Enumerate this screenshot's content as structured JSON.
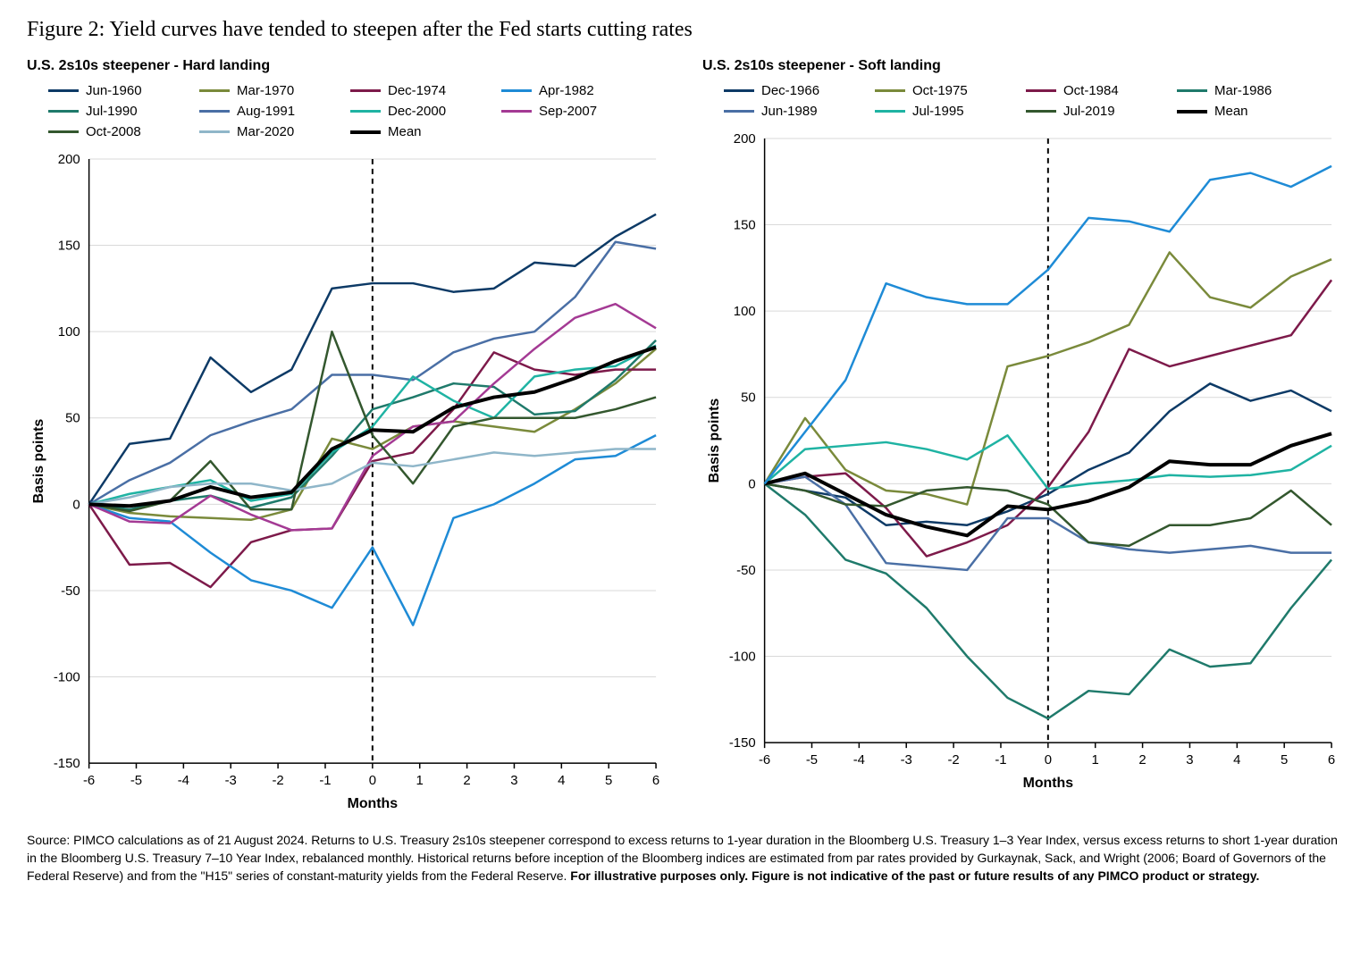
{
  "title": "Figure 2: Yield curves have tended to steepen after the Fed starts cutting rates",
  "footnote_plain": "Source: PIMCO calculations as of 21 August 2024. Returns to U.S. Treasury 2s10s steepener correspond to excess returns to 1-year duration in the Bloomberg U.S. Treasury 1–3 Year Index, versus excess returns to short 1-year duration in the Bloomberg U.S. Treasury 7–10 Year Index, rebalanced monthly. Historical returns before inception of the Bloomberg indices are estimated from par rates provided by Gurkaynak, Sack, and Wright (2006; Board of Governors of the Federal Reserve) and from the \"H15\" series of constant-maturity yields from the Federal Reserve. ",
  "footnote_bold": "For illustrative purposes only. Figure is not indicative of the past or future results of any PIMCO product or strategy.",
  "axes": {
    "x_label": "Months",
    "y_label": "Basis points",
    "x_ticks": [
      -6,
      -5,
      -4,
      -3,
      -2,
      -1,
      0,
      1,
      2,
      3,
      4,
      5,
      6
    ],
    "y_ticks": [
      -150,
      -100,
      -50,
      0,
      50,
      100,
      150,
      200
    ],
    "x_lim": [
      -6,
      6
    ],
    "y_lim": [
      -150,
      200
    ],
    "ref_x": 0,
    "grid_color": "#d9d9d9",
    "axis_color": "#000000",
    "line_width": 2.5
  },
  "panels": {
    "hard": {
      "subtitle": "U.S. 2s10s steepener - Hard landing",
      "series": [
        {
          "label": "Jun-1960",
          "color": "#0d3a66",
          "width": 2.5,
          "y": [
            0,
            35,
            38,
            85,
            65,
            78,
            125,
            128,
            128,
            123,
            125,
            140,
            138,
            155,
            168
          ]
        },
        {
          "label": "Mar-1970",
          "color": "#7a8a3b",
          "width": 2.5,
          "y": [
            0,
            -5,
            -7,
            -8,
            -9,
            -3,
            38,
            32,
            45,
            48,
            45,
            42,
            55,
            70,
            90
          ]
        },
        {
          "label": "Dec-1974",
          "color": "#7d1a4a",
          "width": 2.5,
          "y": [
            0,
            -35,
            -34,
            -48,
            -22,
            -15,
            -14,
            25,
            30,
            55,
            88,
            78,
            75,
            78,
            78
          ]
        },
        {
          "label": "Apr-1982",
          "color": "#1e8bd6",
          "width": 2.5,
          "y": [
            0,
            -8,
            -10,
            -28,
            -44,
            -50,
            -60,
            -25,
            -70,
            -8,
            0,
            12,
            26,
            28,
            40
          ]
        },
        {
          "label": "Jul-1990",
          "color": "#1f7a6b",
          "width": 2.5,
          "y": [
            0,
            -3,
            2,
            5,
            -2,
            4,
            28,
            55,
            62,
            70,
            68,
            52,
            54,
            72,
            95
          ]
        },
        {
          "label": "Aug-1991",
          "color": "#4a6fa5",
          "width": 2.5,
          "y": [
            0,
            14,
            24,
            40,
            48,
            55,
            75,
            75,
            72,
            88,
            96,
            100,
            120,
            152,
            148
          ]
        },
        {
          "label": "Dec-2000",
          "color": "#1fb3a3",
          "width": 2.5,
          "y": [
            0,
            6,
            10,
            14,
            2,
            6,
            30,
            45,
            74,
            60,
            50,
            74,
            78,
            80,
            92
          ]
        },
        {
          "label": "Sep-2007",
          "color": "#a43a94",
          "width": 2.5,
          "y": [
            0,
            -10,
            -11,
            5,
            -6,
            -15,
            -14,
            28,
            45,
            48,
            70,
            90,
            108,
            116,
            102
          ]
        },
        {
          "label": "Oct-2008",
          "color": "#33572e",
          "width": 2.5,
          "y": [
            0,
            -4,
            2,
            25,
            -3,
            -3,
            100,
            40,
            12,
            45,
            50,
            50,
            50,
            55,
            62
          ]
        },
        {
          "label": "Mar-2020",
          "color": "#8fb6c9",
          "width": 2.5,
          "y": [
            0,
            4,
            10,
            12,
            12,
            8,
            12,
            24,
            22,
            26,
            30,
            28,
            30,
            32,
            32
          ]
        },
        {
          "label": "Mean",
          "color": "#000000",
          "width": 4,
          "y": [
            0,
            -1,
            2,
            10,
            4,
            7,
            32,
            43,
            42,
            56,
            62,
            65,
            73,
            83,
            91
          ]
        }
      ]
    },
    "soft": {
      "subtitle": "U.S. 2s10s steepener - Soft landing",
      "series": [
        {
          "label": "Dec-1966",
          "color": "#0d3a66",
          "width": 2.5,
          "y": [
            0,
            -4,
            -8,
            -24,
            -22,
            -24,
            -16,
            -6,
            8,
            18,
            42,
            58,
            48,
            54,
            42
          ]
        },
        {
          "label": "Oct-1975",
          "color": "#7a8a3b",
          "width": 2.5,
          "y": [
            0,
            38,
            8,
            -4,
            -6,
            -12,
            68,
            74,
            82,
            92,
            134,
            108,
            102,
            120,
            130
          ]
        },
        {
          "label": "Oct-1984",
          "color": "#7d1a4a",
          "width": 2.5,
          "y": [
            0,
            4,
            6,
            -14,
            -42,
            -34,
            -24,
            -2,
            30,
            78,
            68,
            74,
            80,
            86,
            118
          ]
        },
        {
          "label": "Mar-1986",
          "color": "#1f7a6b",
          "width": 2.5,
          "y": [
            0,
            -18,
            -44,
            -52,
            -72,
            -100,
            -124,
            -136,
            -120,
            -122,
            -96,
            -106,
            -104,
            -72,
            -44
          ]
        },
        {
          "label": "Jun-1989",
          "color": "#4a6fa5",
          "width": 2.5,
          "y": [
            0,
            4,
            -12,
            -46,
            -48,
            -50,
            -20,
            -20,
            -34,
            -38,
            -40,
            -38,
            -36,
            -40,
            -40
          ]
        },
        {
          "label": "Jul-1995",
          "color": "#1fb3a3",
          "width": 2.5,
          "y": [
            0,
            20,
            22,
            24,
            20,
            14,
            28,
            -3,
            0,
            2,
            5,
            4,
            5,
            8,
            22
          ]
        },
        {
          "label": "Jul-2019",
          "color": "#33572e",
          "width": 2.5,
          "y": [
            0,
            -4,
            -12,
            -13,
            -4,
            -2,
            -4,
            -12,
            -34,
            -36,
            -24,
            -24,
            -20,
            -4,
            -24
          ]
        },
        {
          "label": "Mean",
          "color": "#000000",
          "width": 4,
          "y": [
            0,
            6,
            -6,
            -18,
            -25,
            -30,
            -13,
            -15,
            -10,
            -2,
            13,
            11,
            11,
            22,
            29
          ]
        },
        {
          "label": "_aux_light_blue",
          "color": "#1e8bd6",
          "width": 2.5,
          "y": [
            0,
            30,
            60,
            116,
            108,
            104,
            104,
            124,
            154,
            152,
            146,
            176,
            180,
            172,
            184
          ],
          "hidden_legend": true
        }
      ]
    }
  }
}
